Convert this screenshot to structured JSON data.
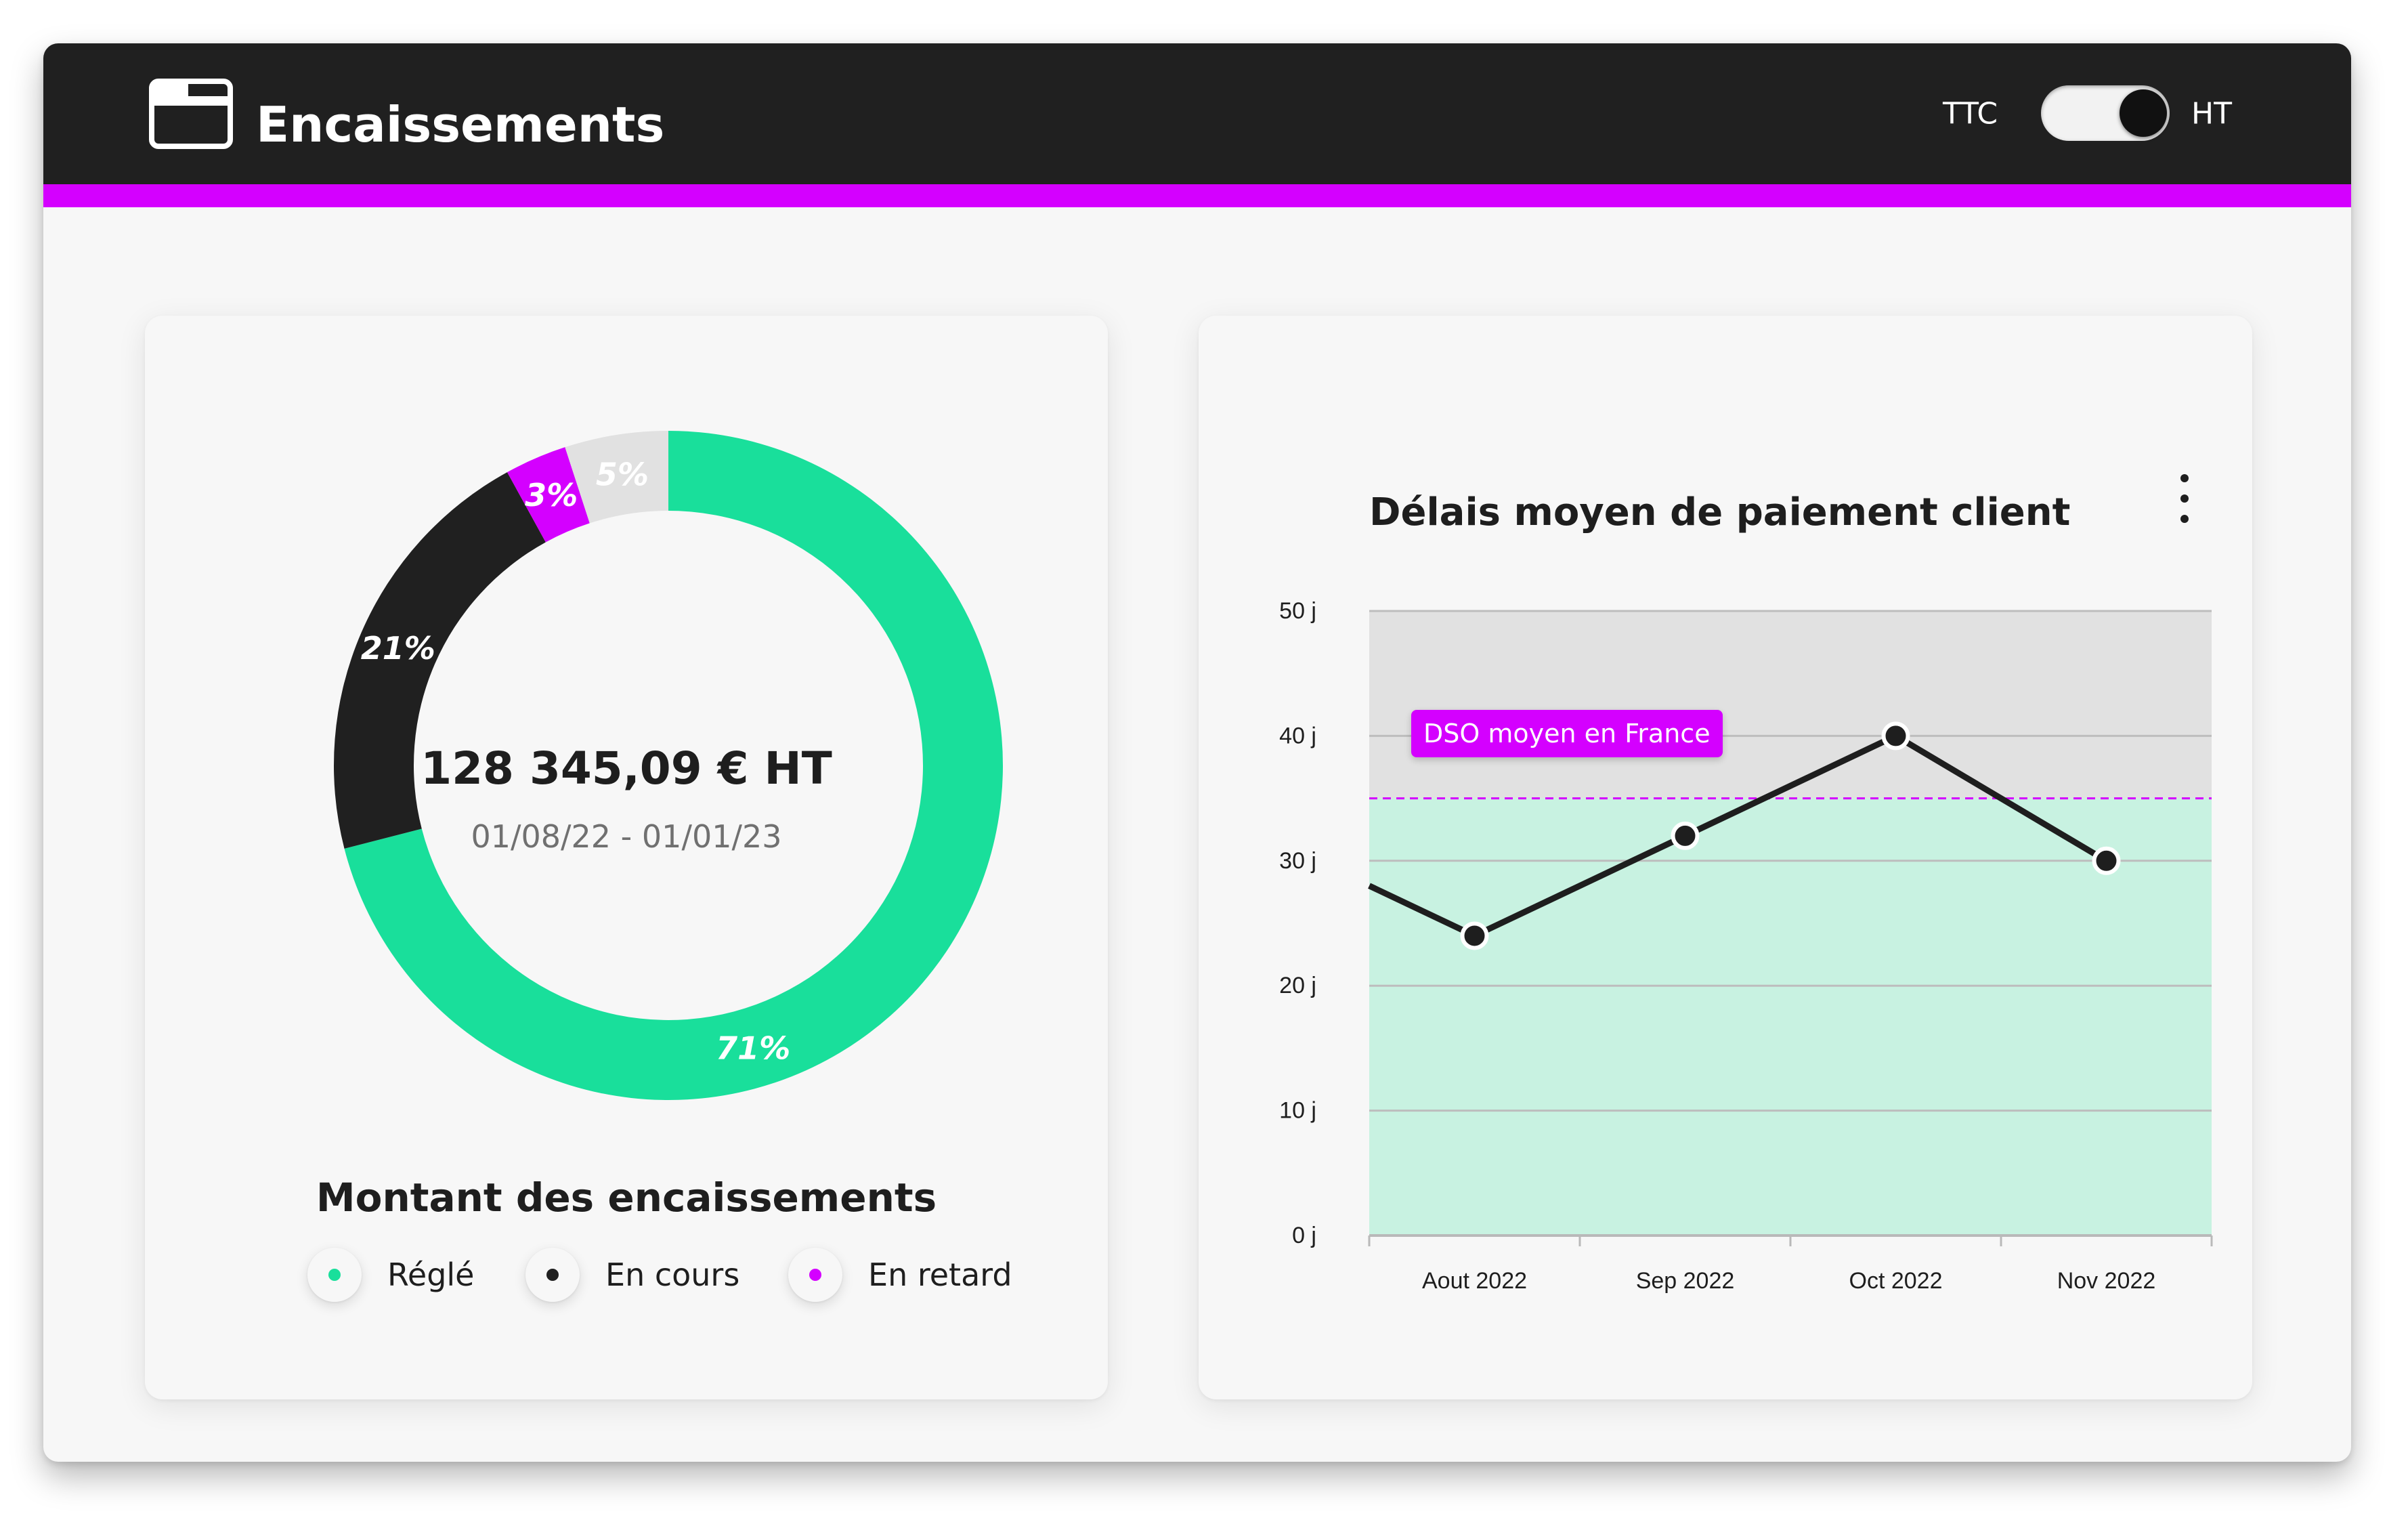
{
  "header": {
    "title": "Encaissements",
    "folder_icon": "folder-icon",
    "toggle": {
      "left_label": "TTC",
      "right_label": "HT",
      "selected": "HT"
    }
  },
  "colors": {
    "accent": "#d400ff",
    "green": "#19df9b",
    "black": "#202020",
    "grey": "#e1e1e1",
    "light_green": "#c8f2e1"
  },
  "donut_card": {
    "amount": "128 345,09 € HT",
    "date_range": "01/08/22 - 01/01/23",
    "title": "Montant des encaissements",
    "legend": [
      {
        "label": "Réglé",
        "color": "#19df9b"
      },
      {
        "label": "En cours",
        "color": "#202020"
      },
      {
        "label": "En retard",
        "color": "#d400ff"
      }
    ]
  },
  "line_card": {
    "title": "Délais moyen de paiement client",
    "menu_icon": "kebab-menu-icon",
    "reference_label": "DSO moyen en France"
  },
  "chart_data": [
    {
      "type": "pie",
      "variant": "donut",
      "slices": [
        {
          "label": "71%",
          "value": 71,
          "color": "#19df9b"
        },
        {
          "label": "21%",
          "value": 21,
          "color": "#202020"
        },
        {
          "label": "3%",
          "value": 3,
          "color": "#d400ff"
        },
        {
          "label": "5%",
          "value": 5,
          "color": "#e1e1e1"
        }
      ],
      "center_text": "128 345,09 € HT",
      "subtitle": "01/08/22 - 01/01/23",
      "title": "Montant des encaissements"
    },
    {
      "type": "line",
      "title": "Délais moyen de paiement client",
      "categories": [
        "Aout 2022",
        "Sep 2022",
        "Oct 2022",
        "Nov 2022"
      ],
      "series": [
        {
          "values": [
            24,
            32,
            40,
            30
          ],
          "start_value": 28
        }
      ],
      "y_ticks": [
        "0 j",
        "10 j",
        "20 j",
        "30 j",
        "40 j",
        "50 j"
      ],
      "ylim": [
        0,
        50
      ],
      "reference_line": {
        "label": "DSO moyen en France",
        "value": 35
      },
      "grid": true
    }
  ]
}
